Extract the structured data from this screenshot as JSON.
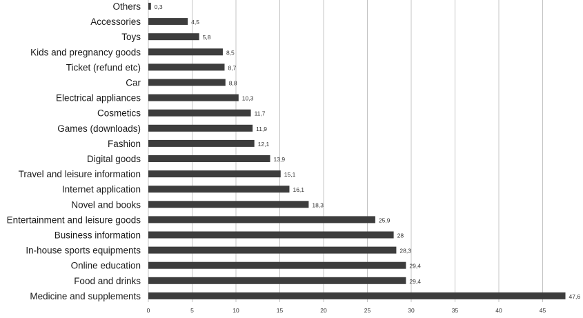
{
  "chart_data": {
    "type": "bar",
    "orientation": "horizontal",
    "categories": [
      "Others",
      "Accessories",
      "Toys",
      "Kids and pregnancy goods",
      "Ticket (refund etc)",
      "Car",
      "Electrical appliances",
      "Cosmetics",
      "Games (downloads)",
      "Fashion",
      "Digital goods",
      "Travel and leisure information",
      "Internet application",
      "Novel and books",
      "Entertainment and leisure goods",
      "Business information",
      "In-house sports equipments",
      "Online education",
      "Food and drinks",
      "Medicine and supplements"
    ],
    "values": [
      0.3,
      4.5,
      5.8,
      8.5,
      8.7,
      8.8,
      10.3,
      11.7,
      11.9,
      12.1,
      13.9,
      15.1,
      16.1,
      18.3,
      25.9,
      28,
      28.3,
      29.4,
      29.4,
      47.6
    ],
    "value_labels": [
      "0,3",
      "4,5",
      "5,8",
      "8,5",
      "8,7",
      "8,8",
      "10,3",
      "11,7",
      "11,9",
      "12,1",
      "13,9",
      "15,1",
      "16,1",
      "18,3",
      "25,9",
      "28",
      "28,3",
      "29,4",
      "29,4",
      "47,6"
    ],
    "xticks": [
      0,
      5,
      10,
      15,
      20,
      25,
      30,
      35,
      40,
      45
    ],
    "xlim": [
      0,
      48
    ],
    "grid": true,
    "bar_color": "#3d3d3d",
    "grid_color": "#c4c4c4",
    "title": "",
    "xlabel": "",
    "ylabel": ""
  }
}
